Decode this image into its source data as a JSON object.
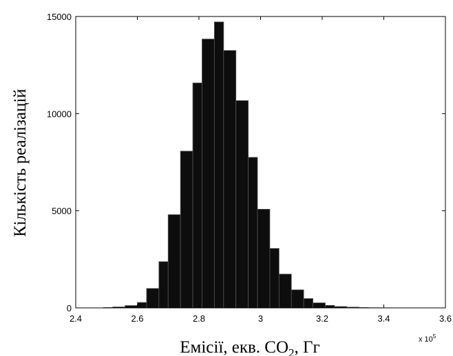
{
  "chart_data": {
    "type": "bar",
    "subtype": "histogram",
    "title": "",
    "xlabel": {
      "prefix": "Емісії, екв. CO",
      "subscript": "2",
      "suffix": ", Гг"
    },
    "ylabel": "Кількість реалізацій",
    "x_exponent": {
      "base": "x 10",
      "power": "5"
    },
    "xlim": [
      2.4,
      3.6
    ],
    "ylim": [
      0,
      15000
    ],
    "x_ticks": [
      2.4,
      2.6,
      2.8,
      3.0,
      3.2,
      3.4,
      3.6
    ],
    "x_tick_labels": [
      "2.4",
      "2.6",
      "2.8",
      "3",
      "3.2",
      "3.4",
      "3.6"
    ],
    "y_ticks": [
      0,
      5000,
      10000,
      15000
    ],
    "y_tick_labels": [
      "0",
      "5000",
      "10000",
      "15000"
    ],
    "bar_color": "#0d0d0d",
    "bar_edge_color": "#555555",
    "grid": false,
    "legend": "none",
    "bins": [
      {
        "x0": 2.49,
        "x1": 2.52,
        "count": 20
      },
      {
        "x0": 2.52,
        "x1": 2.56,
        "count": 50
      },
      {
        "x0": 2.56,
        "x1": 2.6,
        "count": 120
      },
      {
        "x0": 2.6,
        "x1": 2.63,
        "count": 280
      },
      {
        "x0": 2.63,
        "x1": 2.67,
        "count": 1000
      },
      {
        "x0": 2.67,
        "x1": 2.7,
        "count": 2380
      },
      {
        "x0": 2.7,
        "x1": 2.74,
        "count": 4800
      },
      {
        "x0": 2.74,
        "x1": 2.78,
        "count": 8070
      },
      {
        "x0": 2.78,
        "x1": 2.81,
        "count": 11580
      },
      {
        "x0": 2.81,
        "x1": 2.85,
        "count": 13840
      },
      {
        "x0": 2.85,
        "x1": 2.88,
        "count": 14720
      },
      {
        "x0": 2.88,
        "x1": 2.92,
        "count": 13250
      },
      {
        "x0": 2.92,
        "x1": 2.96,
        "count": 10670
      },
      {
        "x0": 2.96,
        "x1": 2.99,
        "count": 7750
      },
      {
        "x0": 2.99,
        "x1": 3.03,
        "count": 5080
      },
      {
        "x0": 3.03,
        "x1": 3.06,
        "count": 3060
      },
      {
        "x0": 3.06,
        "x1": 3.1,
        "count": 1740
      },
      {
        "x0": 3.1,
        "x1": 3.14,
        "count": 930
      },
      {
        "x0": 3.14,
        "x1": 3.17,
        "count": 480
      },
      {
        "x0": 3.17,
        "x1": 3.21,
        "count": 260
      },
      {
        "x0": 3.21,
        "x1": 3.24,
        "count": 130
      },
      {
        "x0": 3.24,
        "x1": 3.28,
        "count": 70
      },
      {
        "x0": 3.28,
        "x1": 3.32,
        "count": 40
      },
      {
        "x0": 3.32,
        "x1": 3.35,
        "count": 20
      },
      {
        "x0": 3.35,
        "x1": 3.39,
        "count": 10
      },
      {
        "x0": 3.39,
        "x1": 3.43,
        "count": 5
      }
    ]
  }
}
